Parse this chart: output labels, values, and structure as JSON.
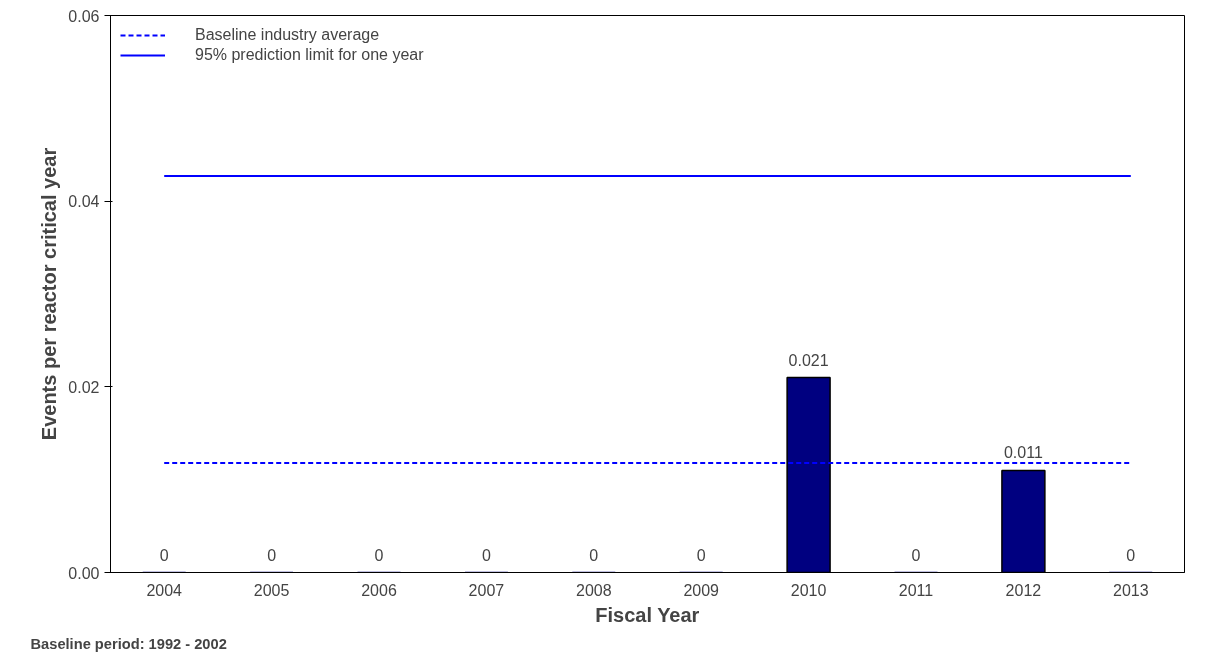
{
  "chart_data": {
    "type": "bar",
    "xlabel": "Fiscal Year",
    "ylabel": "Events per reactor critical year",
    "categories": [
      "2004",
      "2005",
      "2006",
      "2007",
      "2008",
      "2009",
      "2010",
      "2011",
      "2012",
      "2013"
    ],
    "values": [
      0,
      0,
      0,
      0,
      0,
      0,
      0.021,
      0,
      0.011,
      0
    ],
    "color": "#000080",
    "data_labels": true,
    "ylim": [
      0,
      0.06
    ],
    "yticks": [
      {
        "value": 0,
        "label": "0.00"
      },
      0.02,
      0.04,
      0.06
    ],
    "grid": false,
    "legend": "top left",
    "ref_lines": [
      {
        "axis": "y",
        "value": 0.0118,
        "label": "Baseline industry average",
        "color": "#0000ff",
        "line_style": "dashed"
      },
      {
        "axis": "y",
        "value": 0.0427,
        "label": "95% prediction limit for one year",
        "color": "#0000ff",
        "line_style": "solid"
      }
    ],
    "annotations": [
      "Baseline period:  1992 - 2002"
    ]
  }
}
